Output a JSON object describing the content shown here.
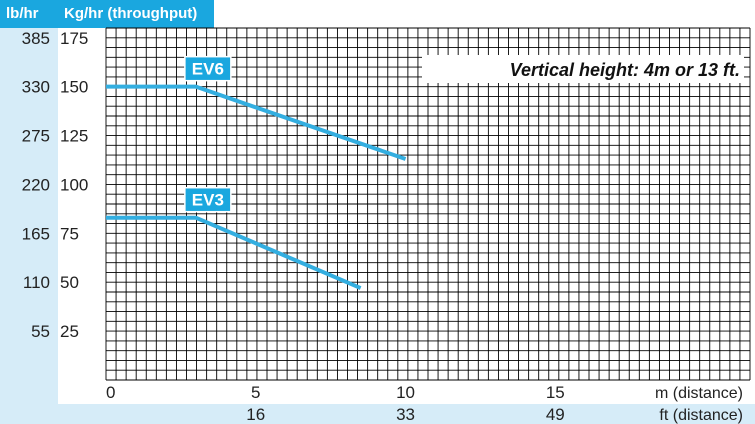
{
  "chart_data": {
    "type": "line",
    "y_axis_left_units_label": "lb/hr",
    "y_axis_right_units_label": "Kg/hr (throughput)",
    "y_kg_ticks": [
      25,
      50,
      75,
      100,
      125,
      150,
      175
    ],
    "y_lb_ticks": [
      55,
      110,
      165,
      220,
      275,
      330,
      385
    ],
    "x_m_ticks": [
      0,
      5,
      10,
      15
    ],
    "x_m_label": "m (distance)",
    "x_ft_ticks": [
      16,
      33,
      49
    ],
    "x_ft_label": "ft (distance)",
    "ylim_kg": [
      0,
      180
    ],
    "xlim_m": [
      0,
      21.5
    ],
    "annotation": "Vertical height: 4m or 13 ft.",
    "series": [
      {
        "name": "EV6",
        "x": [
          0,
          3,
          10
        ],
        "y": [
          150,
          150,
          113
        ]
      },
      {
        "name": "EV3",
        "x": [
          0,
          3,
          8.5
        ],
        "y": [
          83,
          83,
          47
        ]
      }
    ],
    "colors": {
      "accent": "#1aa7df",
      "axis_band": "#d6ecf8",
      "line": "#33aee0",
      "grid": "#000000"
    },
    "grid": true
  }
}
